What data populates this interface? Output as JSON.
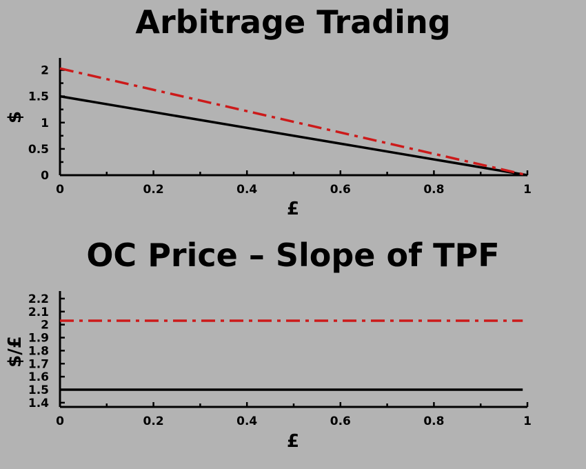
{
  "chart_data": [
    {
      "type": "line",
      "title": "Arbitrage Trading",
      "xlabel": "£",
      "ylabel": "$",
      "xlim": [
        0,
        1
      ],
      "ylim": [
        0,
        2.2
      ],
      "xticks": [
        "0",
        "0.2",
        "0.4",
        "0.6",
        "0.8",
        "1"
      ],
      "yticks": [
        "0",
        "0.5",
        "1",
        "1.5",
        "2"
      ],
      "grid": false,
      "series": [
        {
          "style": "solid",
          "color": "#000000",
          "x": [
            0,
            1
          ],
          "y": [
            1.5,
            0
          ]
        },
        {
          "style": "dash-dot",
          "color": "#cc1a1a",
          "x": [
            0,
            1
          ],
          "y": [
            2.03,
            0
          ]
        }
      ]
    },
    {
      "type": "line",
      "title": "OC Price – Slope of TPF",
      "xlabel": "£",
      "ylabel": "$/£",
      "xlim": [
        0,
        1
      ],
      "ylim": [
        1.4,
        2.25
      ],
      "xticks": [
        "0",
        "0.2",
        "0.4",
        "0.6",
        "0.8",
        "1"
      ],
      "yticks": [
        "1.4",
        "1.5",
        "1.6",
        "1.7",
        "1.8",
        "1.9",
        "2",
        "2.1",
        "2.2"
      ],
      "grid": false,
      "series": [
        {
          "style": "solid",
          "color": "#000000",
          "x": [
            0,
            0.99
          ],
          "y": [
            1.5,
            1.5
          ]
        },
        {
          "style": "dash-dot",
          "color": "#cc1a1a",
          "x": [
            0,
            0.99
          ],
          "y": [
            2.03,
            2.03
          ]
        }
      ]
    }
  ]
}
